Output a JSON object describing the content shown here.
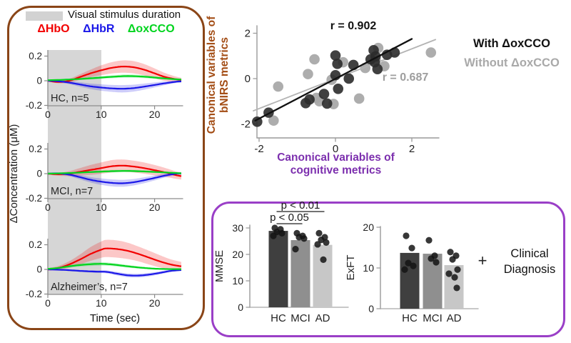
{
  "left_panel": {
    "stimulus_legend": "Visual stimulus duration",
    "stimulus_band_color": "#d6d6d6"
  },
  "clinical": {
    "plus": "+",
    "lines": [
      "Clinical",
      "Diagnosis"
    ]
  },
  "chart_data": [
    {
      "type": "line",
      "id": "timecourses",
      "ylabel": "ΔConcentration (μM)",
      "xlabel": "Time (sec)",
      "xticks": [
        0,
        10,
        20
      ],
      "yticks": [
        0.2,
        0,
        -0.2
      ],
      "xlim": [
        0,
        25
      ],
      "ylim": [
        -0.2,
        0.25
      ],
      "stimulus_window_sec": [
        0,
        10
      ],
      "legend": [
        {
          "label": "ΔHbO",
          "color": "#f20000"
        },
        {
          "label": "ΔHbR",
          "color": "#1a17e8"
        },
        {
          "label": "ΔoxCCO",
          "color": "#00d41e"
        }
      ],
      "subplots": [
        {
          "label": "HC, n=5",
          "series": [
            {
              "name": "ΔHbO",
              "points": [
                [
                  0,
                  0,
                  0.006
                ],
                [
                  2,
                  -0.01,
                  0.01
                ],
                [
                  4,
                  0,
                  0.016
                ],
                [
                  6,
                  0.03,
                  0.022
                ],
                [
                  8,
                  0.06,
                  0.03
                ],
                [
                  10,
                  0.085,
                  0.04
                ],
                [
                  12,
                  0.105,
                  0.046
                ],
                [
                  14,
                  0.115,
                  0.05
                ],
                [
                  16,
                  0.11,
                  0.05
                ],
                [
                  18,
                  0.09,
                  0.046
                ],
                [
                  20,
                  0.06,
                  0.04
                ],
                [
                  22,
                  0.03,
                  0.032
                ],
                [
                  24,
                  0.012,
                  0.022
                ],
                [
                  25,
                  0.006,
                  0.018
                ]
              ]
            },
            {
              "name": "ΔHbR",
              "points": [
                [
                  0,
                  0,
                  0.005
                ],
                [
                  2,
                  -0.004,
                  0.008
                ],
                [
                  4,
                  -0.015,
                  0.012
                ],
                [
                  6,
                  -0.03,
                  0.018
                ],
                [
                  8,
                  -0.045,
                  0.022
                ],
                [
                  10,
                  -0.055,
                  0.026
                ],
                [
                  12,
                  -0.062,
                  0.028
                ],
                [
                  14,
                  -0.065,
                  0.03
                ],
                [
                  16,
                  -0.06,
                  0.028
                ],
                [
                  18,
                  -0.048,
                  0.025
                ],
                [
                  20,
                  -0.034,
                  0.02
                ],
                [
                  22,
                  -0.02,
                  0.015
                ],
                [
                  24,
                  -0.008,
                  0.01
                ],
                [
                  25,
                  -0.005,
                  0.009
                ]
              ]
            },
            {
              "name": "ΔoxCCO",
              "points": [
                [
                  0,
                  0.004,
                  0.004
                ],
                [
                  4,
                  0.01,
                  0.006
                ],
                [
                  8,
                  0.02,
                  0.01
                ],
                [
                  12,
                  0.032,
                  0.012
                ],
                [
                  15,
                  0.038,
                  0.013
                ],
                [
                  18,
                  0.033,
                  0.012
                ],
                [
                  21,
                  0.022,
                  0.01
                ],
                [
                  24,
                  0.012,
                  0.008
                ],
                [
                  25,
                  0.01,
                  0.007
                ]
              ]
            }
          ]
        },
        {
          "label": "MCI, n=7",
          "series": [
            {
              "name": "ΔHbO",
              "points": [
                [
                  0,
                  0,
                  0.008
                ],
                [
                  2,
                  -0.005,
                  0.012
                ],
                [
                  4,
                  0,
                  0.02
                ],
                [
                  6,
                  0.015,
                  0.03
                ],
                [
                  8,
                  0.03,
                  0.04
                ],
                [
                  10,
                  0.045,
                  0.046
                ],
                [
                  12,
                  0.06,
                  0.05
                ],
                [
                  14,
                  0.065,
                  0.05
                ],
                [
                  16,
                  0.058,
                  0.048
                ],
                [
                  18,
                  0.045,
                  0.046
                ],
                [
                  20,
                  0.028,
                  0.042
                ],
                [
                  22,
                  0.01,
                  0.036
                ],
                [
                  24,
                  -0.012,
                  0.03
                ],
                [
                  25,
                  -0.02,
                  0.028
                ]
              ]
            },
            {
              "name": "ΔHbR",
              "points": [
                [
                  0,
                  0,
                  0.005
                ],
                [
                  2,
                  0.002,
                  0.008
                ],
                [
                  4,
                  -0.008,
                  0.012
                ],
                [
                  6,
                  -0.028,
                  0.018
                ],
                [
                  8,
                  -0.05,
                  0.022
                ],
                [
                  10,
                  -0.065,
                  0.026
                ],
                [
                  12,
                  -0.075,
                  0.028
                ],
                [
                  14,
                  -0.078,
                  0.028
                ],
                [
                  16,
                  -0.07,
                  0.026
                ],
                [
                  18,
                  -0.054,
                  0.024
                ],
                [
                  20,
                  -0.035,
                  0.02
                ],
                [
                  22,
                  -0.015,
                  0.016
                ],
                [
                  24,
                  0,
                  0.012
                ],
                [
                  25,
                  0.002,
                  0.01
                ]
              ]
            },
            {
              "name": "ΔoxCCO",
              "points": [
                [
                  0,
                  0,
                  0.004
                ],
                [
                  4,
                  0.005,
                  0.006
                ],
                [
                  8,
                  0.013,
                  0.008
                ],
                [
                  12,
                  0.02,
                  0.01
                ],
                [
                  15,
                  0.022,
                  0.01
                ],
                [
                  18,
                  0.018,
                  0.009
                ],
                [
                  21,
                  0.012,
                  0.008
                ],
                [
                  24,
                  0.005,
                  0.006
                ],
                [
                  25,
                  0.003,
                  0.005
                ]
              ]
            }
          ]
        },
        {
          "label": "Alzheimer’s, n=7",
          "series": [
            {
              "name": "ΔHbO",
              "points": [
                [
                  0,
                  0,
                  0.01
                ],
                [
                  2,
                  0.012,
                  0.016
                ],
                [
                  4,
                  0.04,
                  0.026
                ],
                [
                  6,
                  0.08,
                  0.04
                ],
                [
                  8,
                  0.125,
                  0.056
                ],
                [
                  10,
                  0.16,
                  0.066
                ],
                [
                  11,
                  0.17,
                  0.07
                ],
                [
                  13,
                  0.165,
                  0.07
                ],
                [
                  15,
                  0.15,
                  0.066
                ],
                [
                  17,
                  0.125,
                  0.06
                ],
                [
                  19,
                  0.095,
                  0.056
                ],
                [
                  21,
                  0.065,
                  0.05
                ],
                [
                  23,
                  0.04,
                  0.042
                ],
                [
                  25,
                  0.025,
                  0.036
                ]
              ]
            },
            {
              "name": "ΔHbR",
              "points": [
                [
                  0,
                  0,
                  0.004
                ],
                [
                  3,
                  -0.004,
                  0.006
                ],
                [
                  6,
                  -0.012,
                  0.008
                ],
                [
                  9,
                  -0.018,
                  0.01
                ],
                [
                  11,
                  -0.02,
                  0.012
                ],
                [
                  13,
                  -0.035,
                  0.014
                ],
                [
                  15,
                  -0.048,
                  0.015
                ],
                [
                  17,
                  -0.05,
                  0.015
                ],
                [
                  19,
                  -0.042,
                  0.014
                ],
                [
                  21,
                  -0.028,
                  0.012
                ],
                [
                  23,
                  -0.012,
                  0.01
                ],
                [
                  25,
                  -0.005,
                  0.008
                ]
              ]
            },
            {
              "name": "ΔoxCCO",
              "points": [
                [
                  0,
                  0.004,
                  0.005
                ],
                [
                  2,
                  0.012,
                  0.007
                ],
                [
                  4,
                  0.025,
                  0.01
                ],
                [
                  6,
                  0.035,
                  0.012
                ],
                [
                  8,
                  0.042,
                  0.014
                ],
                [
                  10,
                  0.045,
                  0.014
                ],
                [
                  12,
                  0.04,
                  0.013
                ],
                [
                  14,
                  0.03,
                  0.012
                ],
                [
                  16,
                  0.02,
                  0.01
                ],
                [
                  18,
                  0.012,
                  0.008
                ],
                [
                  20,
                  0.006,
                  0.007
                ],
                [
                  22,
                  0.003,
                  0.006
                ],
                [
                  25,
                  0.002,
                  0.005
                ]
              ]
            }
          ]
        }
      ]
    },
    {
      "type": "scatter",
      "id": "canonical-correlation",
      "xlabel_lines": [
        "Canonical variables of",
        "cognitive metrics"
      ],
      "ylabel_lines": [
        "Canonical variables of",
        "bNIRS metrics"
      ],
      "xlabel_color": "#7c2fae",
      "ylabel_color": "#a34d15",
      "xticks": [
        -2,
        0,
        2
      ],
      "yticks": [
        -2,
        0,
        2
      ],
      "xlim": [
        -2.2,
        2.7
      ],
      "ylim": [
        -2.6,
        2.3
      ],
      "series": [
        {
          "name": "With ΔoxCCO",
          "r": "r = 0.902",
          "r_color": "#111111",
          "legend_color": "#111111",
          "dot_color": "#2b2b2b",
          "line_color": "#111111",
          "line": [
            [
              -2.1,
              -1.85
            ],
            [
              2.0,
              1.75
            ]
          ],
          "points": [
            [
              -2.05,
              -1.9
            ],
            [
              -1.75,
              -1.5
            ],
            [
              -0.78,
              -1.08
            ],
            [
              -0.68,
              -0.92
            ],
            [
              -0.3,
              -0.68
            ],
            [
              -0.22,
              -1.1
            ],
            [
              0.0,
              1.02
            ],
            [
              0.05,
              0.65
            ],
            [
              0.0,
              0.15
            ],
            [
              0.07,
              -0.45
            ],
            [
              0.35,
              0.0
            ],
            [
              0.47,
              0.6
            ],
            [
              0.92,
              0.85
            ],
            [
              1.0,
              1.25
            ],
            [
              1.05,
              0.98
            ],
            [
              1.03,
              0.72
            ],
            [
              1.1,
              0.42
            ],
            [
              1.35,
              1.05
            ],
            [
              1.55,
              1.15
            ]
          ]
        },
        {
          "name": "Without ΔoxCCO",
          "r": "r = 0.687",
          "r_color": "#9e9e9e",
          "legend_color": "#a9a9a9",
          "dot_color": "#a9a9a9",
          "line_color": "#b3b3b3",
          "line": [
            [
              -2.15,
              -1.42
            ],
            [
              2.62,
              1.72
            ]
          ],
          "points": [
            [
              -1.62,
              -1.85
            ],
            [
              -1.5,
              -0.35
            ],
            [
              -0.72,
              0.2
            ],
            [
              -0.55,
              0.85
            ],
            [
              -0.5,
              -0.85
            ],
            [
              -0.42,
              -1.0
            ],
            [
              -0.1,
              -0.05
            ],
            [
              -0.05,
              -1.12
            ],
            [
              0.2,
              0.72
            ],
            [
              0.62,
              -0.88
            ],
            [
              0.78,
              0.47
            ],
            [
              1.05,
              0.82
            ],
            [
              1.12,
              1.35
            ],
            [
              1.28,
              0.55
            ],
            [
              2.5,
              1.15
            ]
          ]
        }
      ]
    },
    {
      "type": "bar",
      "id": "mmse",
      "ylabel": "MMSE",
      "categories": [
        "HC",
        "MCI",
        "AD"
      ],
      "values": [
        28.9,
        25.4,
        23.6
      ],
      "bar_colors": [
        "#3f3f3f",
        "#8f8f8f",
        "#c7c7c7"
      ],
      "dots": [
        [
          30,
          29.5,
          28.5,
          28,
          27
        ],
        [
          28,
          27,
          26.5,
          26,
          22
        ],
        [
          28,
          26.5,
          25.5,
          24.5,
          23.8,
          18
        ]
      ],
      "yticks": [
        0,
        10,
        20,
        30
      ],
      "ylim": [
        0,
        31
      ],
      "annotations": [
        {
          "label": "p < 0.01",
          "from": 0,
          "to": 2,
          "line_y": 36.2
        },
        {
          "label": "p < 0.05",
          "from": 0,
          "to": 1,
          "line_y": 31.6
        }
      ]
    },
    {
      "type": "bar",
      "id": "exft",
      "ylabel": "ExFT",
      "categories": [
        "HC",
        "MCI",
        "AD"
      ],
      "values": [
        13.7,
        13.5,
        10.7
      ],
      "bar_colors": [
        "#3f3f3f",
        "#8f8f8f",
        "#c7c7c7"
      ],
      "dots": [
        [
          17.9,
          14.9,
          11.2,
          10.5,
          9.6
        ],
        [
          16.8,
          13.0,
          12.3,
          11.4
        ],
        [
          13.9,
          13.0,
          12.1,
          9.6,
          8.6,
          7.7,
          5.1
        ]
      ],
      "yticks": [
        0,
        10,
        20
      ],
      "ylim": [
        0,
        20
      ]
    }
  ]
}
